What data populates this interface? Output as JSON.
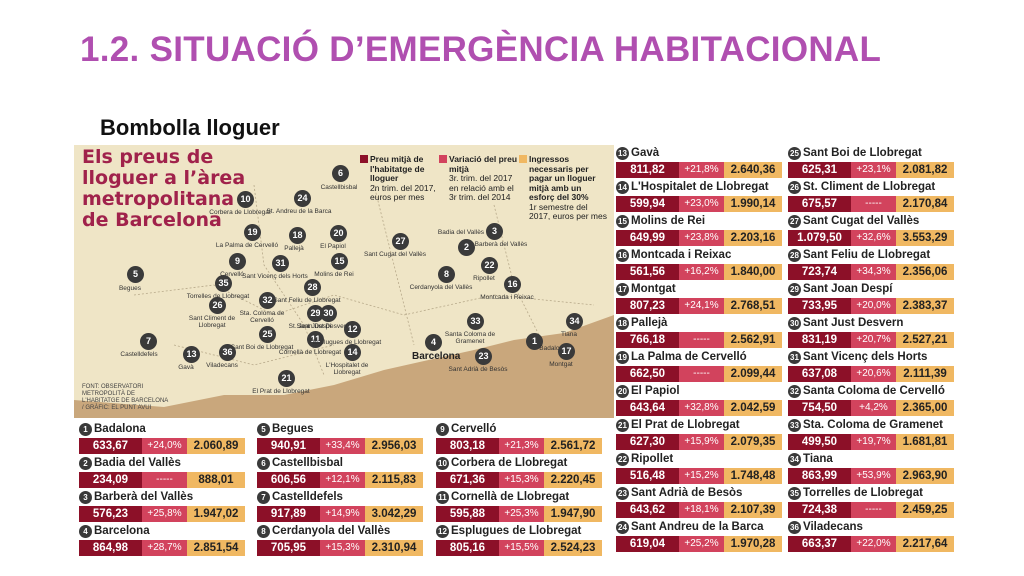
{
  "slide": {
    "title": "1.2. SITUACIÓ D’EMERGÈNCIA HABITACIONAL",
    "subtitle": "Bombolla lloguer"
  },
  "map": {
    "title": "Els preus de\nlloguer a l’àrea\nmetropolitana\nde Barcelona",
    "legend": [
      {
        "head": "Preu mitjà de l'habitatge de lloguer",
        "sub": "2n trim. del 2017, euros per mes",
        "color": "#8c1028"
      },
      {
        "head": "Variació del preu mitjà",
        "sub": "3r. trim. del 2017 en relació amb el 3r trim. del 2014",
        "color": "#d2435d"
      },
      {
        "head": "Ingressos necessaris per pagar un lloguer mitjà amb un esforç del 30%",
        "sub": "1r semestre del 2017, euros per mes",
        "color": "#f0b862"
      }
    ],
    "source": "FONT: OBSERVATORI\nMETROPOLITÀ DE\nL'HABITATGE DE BARCELONA\n/ GRÀFIC: EL PUNT AVUI",
    "city_label": "Barcelona",
    "markers": [
      {
        "n": "1",
        "label": "Badalona"
      },
      {
        "n": "2",
        "label": "Badia del Vallès"
      },
      {
        "n": "3",
        "label": "Barberà del Vallès"
      },
      {
        "n": "4",
        "label": ""
      },
      {
        "n": "5",
        "label": "Begues"
      },
      {
        "n": "6",
        "label": "Castellbisbal"
      },
      {
        "n": "7",
        "label": "Castelldefels"
      },
      {
        "n": "8",
        "label": "Cerdanyola del Vallès"
      },
      {
        "n": "9",
        "label": "Cervelló"
      },
      {
        "n": "10",
        "label": "Corbera de Llobregat"
      },
      {
        "n": "11",
        "label": "Cornellà de Llobregat"
      },
      {
        "n": "12",
        "label": "Esplugues de Llobregat"
      },
      {
        "n": "13",
        "label": "Gavà"
      },
      {
        "n": "14",
        "label": "L'Hospitalet de Llobregat"
      },
      {
        "n": "15",
        "label": "Molins de Rei"
      },
      {
        "n": "16",
        "label": "Montcada i Reixac"
      },
      {
        "n": "17",
        "label": "Montgat"
      },
      {
        "n": "18",
        "label": "Pallejà"
      },
      {
        "n": "19",
        "label": "La Palma de Cervelló"
      },
      {
        "n": "20",
        "label": "El Papiol"
      },
      {
        "n": "21",
        "label": "El Prat de Llobregat"
      },
      {
        "n": "22",
        "label": "Ripollet"
      },
      {
        "n": "23",
        "label": "Sant Adrià de Besòs"
      },
      {
        "n": "24",
        "label": "St. Andreu de la Barca"
      },
      {
        "n": "25",
        "label": "Sant Boi de Llobregat"
      },
      {
        "n": "26",
        "label": "Sant Climent de Llobregat"
      },
      {
        "n": "27",
        "label": "Sant Cugat del Vallès"
      },
      {
        "n": "28",
        "label": "Sant Feliu de Llobregat"
      },
      {
        "n": "29",
        "label": "St. Joan Despí"
      },
      {
        "n": "30",
        "label": "Sant Just Desvern"
      },
      {
        "n": "31",
        "label": "Sant Vicenç dels Horts"
      },
      {
        "n": "32",
        "label": "Sta. Coloma de Cervelló"
      },
      {
        "n": "33",
        "label": "Santa Coloma de Gramenet"
      },
      {
        "n": "34",
        "label": "Tiana"
      },
      {
        "n": "35",
        "label": "Torrelles de Llobregat"
      },
      {
        "n": "36",
        "label": "Viladecans"
      }
    ]
  },
  "cards": [
    {
      "n": "1",
      "name": "Badalona",
      "price": "633,67",
      "change": "+24,0%",
      "income": "2.060,89"
    },
    {
      "n": "2",
      "name": "Badia del Vallès",
      "price": "234,09",
      "change": "-----",
      "income": "888,01"
    },
    {
      "n": "3",
      "name": "Barberà del Vallès",
      "price": "576,23",
      "change": "+25,8%",
      "income": "1.947,02"
    },
    {
      "n": "4",
      "name": "Barcelona",
      "price": "864,98",
      "change": "+28,7%",
      "income": "2.851,54"
    },
    {
      "n": "5",
      "name": "Begues",
      "price": "940,91",
      "change": "+33,4%",
      "income": "2.956,03"
    },
    {
      "n": "6",
      "name": "Castellbisbal",
      "price": "606,56",
      "change": "+12,1%",
      "income": "2.115,83"
    },
    {
      "n": "7",
      "name": "Castelldefels",
      "price": "917,89",
      "change": "+14,9%",
      "income": "3.042,29"
    },
    {
      "n": "8",
      "name": "Cerdanyola del Vallès",
      "price": "705,95",
      "change": "+15,3%",
      "income": "2.310,94"
    },
    {
      "n": "9",
      "name": "Cervelló",
      "price": "803,18",
      "change": "+21,3%",
      "income": "2.561,72"
    },
    {
      "n": "10",
      "name": "Corbera de Llobregat",
      "price": "671,36",
      "change": "+15,3%",
      "income": "2.220,45"
    },
    {
      "n": "11",
      "name": "Cornellà de Llobregat",
      "price": "595,88",
      "change": "+25,3%",
      "income": "1.947,90"
    },
    {
      "n": "12",
      "name": "Esplugues de Llobregat",
      "price": "805,16",
      "change": "+15,5%",
      "income": "2.524,23"
    },
    {
      "n": "13",
      "name": "Gavà",
      "price": "811,82",
      "change": "+21,8%",
      "income": "2.640,36"
    },
    {
      "n": "14",
      "name": "L'Hospitalet de Llobregat",
      "price": "599,94",
      "change": "+23,0%",
      "income": "1.990,14"
    },
    {
      "n": "15",
      "name": "Molins de Rei",
      "price": "649,99",
      "change": "+23,8%",
      "income": "2.203,16"
    },
    {
      "n": "16",
      "name": "Montcada i Reixac",
      "price": "561,56",
      "change": "+16,2%",
      "income": "1.840,00"
    },
    {
      "n": "17",
      "name": "Montgat",
      "price": "807,23",
      "change": "+24,1%",
      "income": "2.768,51"
    },
    {
      "n": "18",
      "name": "Pallejà",
      "price": "766,18",
      "change": "-----",
      "income": "2.562,91"
    },
    {
      "n": "19",
      "name": "La Palma de Cervelló",
      "price": "662,50",
      "change": "-----",
      "income": "2.099,44"
    },
    {
      "n": "20",
      "name": "El Papiol",
      "price": "643,64",
      "change": "+32,8%",
      "income": "2.042,59"
    },
    {
      "n": "21",
      "name": "El Prat de Llobregat",
      "price": "627,30",
      "change": "+15,9%",
      "income": "2.079,35"
    },
    {
      "n": "22",
      "name": "Ripollet",
      "price": "516,48",
      "change": "+15,2%",
      "income": "1.748,48"
    },
    {
      "n": "23",
      "name": "Sant Adrià de Besòs",
      "price": "643,62",
      "change": "+18,1%",
      "income": "2.107,39"
    },
    {
      "n": "24",
      "name": "Sant Andreu de la Barca",
      "price": "619,04",
      "change": "+25,2%",
      "income": "1.970,28"
    },
    {
      "n": "25",
      "name": "Sant Boi de Llobregat",
      "price": "625,31",
      "change": "+23,1%",
      "income": "2.081,82"
    },
    {
      "n": "26",
      "name": "St. Climent de Llobregat",
      "price": "675,57",
      "change": "-----",
      "income": "2.170,84"
    },
    {
      "n": "27",
      "name": "Sant Cugat del Vallès",
      "price": "1.079,50",
      "change": "+32,6%",
      "income": "3.553,29"
    },
    {
      "n": "28",
      "name": "Sant Feliu de Llobregat",
      "price": "723,74",
      "change": "+34,3%",
      "income": "2.356,06"
    },
    {
      "n": "29",
      "name": "Sant Joan Despí",
      "price": "733,95",
      "change": "+20,0%",
      "income": "2.383,37"
    },
    {
      "n": "30",
      "name": "Sant Just Desvern",
      "price": "831,19",
      "change": "+20,7%",
      "income": "2.527,21"
    },
    {
      "n": "31",
      "name": "Sant Vicenç dels Horts",
      "price": "637,08",
      "change": "+20,6%",
      "income": "2.111,39"
    },
    {
      "n": "32",
      "name": "Santa Coloma de Cervelló",
      "price": "754,50",
      "change": "+4,2%",
      "income": "2.365,00"
    },
    {
      "n": "33",
      "name": "Sta. Coloma de Gramenet",
      "price": "499,50",
      "change": "+19,7%",
      "income": "1.681,81"
    },
    {
      "n": "34",
      "name": "Tiana",
      "price": "863,99",
      "change": "+53,9%",
      "income": "2.963,90"
    },
    {
      "n": "35",
      "name": "Torrelles de Llobregat",
      "price": "724,38",
      "change": "-----",
      "income": "2.459,25"
    },
    {
      "n": "36",
      "name": "Viladecans",
      "price": "663,37",
      "change": "+22,0%",
      "income": "2.217,64"
    }
  ],
  "colors": {
    "title": "#b04fb0",
    "price": "#8c1028",
    "change": "#d2435d",
    "income": "#f0b862",
    "map_land": "#efe5c6",
    "map_sea": "#c9a77c"
  }
}
